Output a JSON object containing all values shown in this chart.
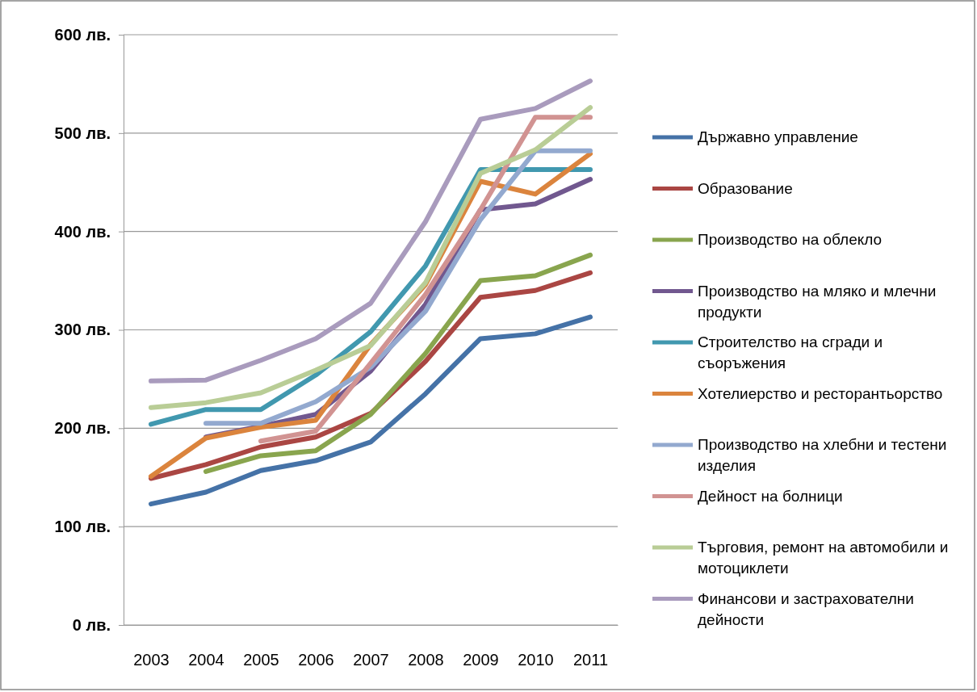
{
  "chart_data": {
    "type": "line",
    "categories": [
      "2003",
      "2004",
      "2005",
      "2006",
      "2007",
      "2008",
      "2009",
      "2010",
      "2011"
    ],
    "ylim": [
      0,
      600
    ],
    "yticks": [
      {
        "value": 0,
        "label": "0 лв."
      },
      {
        "value": 100,
        "label": "100 лв."
      },
      {
        "value": 200,
        "label": "200 лв."
      },
      {
        "value": 300,
        "label": "300 лв."
      },
      {
        "value": 400,
        "label": "400 лв."
      },
      {
        "value": 500,
        "label": "500 лв."
      },
      {
        "value": 600,
        "label": "600 лв."
      }
    ],
    "grid": "y",
    "legend": "right",
    "marker": "none",
    "line_style": "solid",
    "series": [
      {
        "name": "Държавно управление",
        "color": "#4572a7",
        "values": [
          123,
          135,
          157,
          167,
          186,
          235,
          291,
          296,
          313
        ]
      },
      {
        "name": "Образование",
        "color": "#aa4643",
        "values": [
          149,
          163,
          181,
          191,
          215,
          268,
          333,
          340,
          358
        ]
      },
      {
        "name": "Производство на облекло",
        "color": "#89a54e",
        "values": [
          null,
          156,
          172,
          177,
          214,
          276,
          350,
          355,
          376
        ]
      },
      {
        "name": "Производство на мляко и млечни продукти",
        "color": "#71588f",
        "values": [
          null,
          191,
          202,
          214,
          258,
          326,
          422,
          428,
          453
        ]
      },
      {
        "name": "Строителство на сгради и съоръжения",
        "color": "#4198af",
        "values": [
          204,
          219,
          219,
          254,
          298,
          365,
          463,
          463,
          463
        ]
      },
      {
        "name": "Хотелиерство и ресторантьорство",
        "color": "#db843d",
        "values": [
          151,
          190,
          201,
          208,
          285,
          346,
          451,
          438,
          479
        ]
      },
      {
        "name": "Производство на хлебни и тестени изделия",
        "color": "#93a9cf",
        "values": [
          null,
          205,
          205,
          227,
          262,
          319,
          412,
          482,
          482
        ]
      },
      {
        "name": "Дейност на болници",
        "color": "#d19392",
        "values": [
          null,
          null,
          187,
          197,
          266,
          336,
          422,
          516,
          516
        ]
      },
      {
        "name": "Търговия, ремонт на автомобили и мотоциклети",
        "color": "#b9cd96",
        "values": [
          221,
          226,
          236,
          259,
          284,
          348,
          459,
          483,
          526
        ]
      },
      {
        "name": "Финансови и застрахователни дейности",
        "color": "#a99bbd",
        "values": [
          248,
          249,
          269,
          291,
          327,
          410,
          514,
          525,
          553
        ]
      }
    ]
  }
}
